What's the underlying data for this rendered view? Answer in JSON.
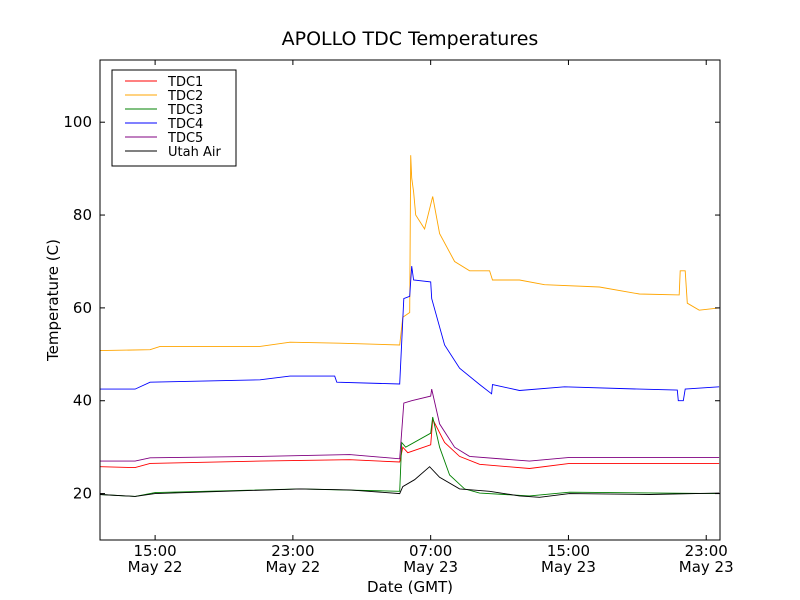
{
  "chart_data": {
    "type": "line",
    "title": "APOLLO TDC Temperatures",
    "xlabel": "Date (GMT)",
    "ylabel": "Temperature (C)",
    "x_units": "hours since May 22 00:00 GMT",
    "xlim": [
      11.8,
      47.8
    ],
    "ylim": [
      10,
      113.4
    ],
    "grid": false,
    "legend_position": "top-left",
    "yticks": [
      20,
      40,
      60,
      80,
      100
    ],
    "xticks": [
      {
        "x": 15,
        "time": "15:00",
        "date": "May 22"
      },
      {
        "x": 23,
        "time": "23:00",
        "date": "May 22"
      },
      {
        "x": 31,
        "time": "07:00",
        "date": "May 23"
      },
      {
        "x": 39,
        "time": "15:00",
        "date": "May 23"
      },
      {
        "x": 47,
        "time": "23:00",
        "date": "May 23"
      }
    ],
    "series": [
      {
        "name": "TDC1",
        "color": "#ff0000",
        "points": [
          [
            11.81,
            25.8
          ],
          [
            13.84,
            25.6
          ],
          [
            14.71,
            26.5
          ],
          [
            21.09,
            27
          ],
          [
            26.3,
            27.3
          ],
          [
            29.2,
            26.8
          ],
          [
            29.38,
            30
          ],
          [
            29.67,
            28.8
          ],
          [
            31.0,
            30.5
          ],
          [
            31.12,
            36
          ],
          [
            31.81,
            31
          ],
          [
            32.68,
            28
          ],
          [
            33.84,
            26.3
          ],
          [
            36.74,
            25.4
          ],
          [
            39.06,
            26.5
          ],
          [
            47.75,
            26.5
          ]
        ]
      },
      {
        "name": "TDC2",
        "color": "#ffa500",
        "points": [
          [
            11.81,
            50.8
          ],
          [
            14.71,
            51
          ],
          [
            15.29,
            51.7
          ],
          [
            21.09,
            51.7
          ],
          [
            22.83,
            52.6
          ],
          [
            25.72,
            52.4
          ],
          [
            29.2,
            52
          ],
          [
            29.38,
            58
          ],
          [
            29.78,
            59
          ],
          [
            29.84,
            92.9
          ],
          [
            29.9,
            88
          ],
          [
            30.01,
            85
          ],
          [
            30.13,
            80
          ],
          [
            30.65,
            77
          ],
          [
            31.12,
            84
          ],
          [
            31.52,
            76
          ],
          [
            32.39,
            70
          ],
          [
            33.26,
            68
          ],
          [
            34.42,
            68
          ],
          [
            34.59,
            66
          ],
          [
            36.16,
            66
          ],
          [
            37.61,
            65
          ],
          [
            40.8,
            64.5
          ],
          [
            43.12,
            63
          ],
          [
            45.43,
            62.8
          ],
          [
            45.49,
            68
          ],
          [
            45.78,
            68
          ],
          [
            45.9,
            61
          ],
          [
            46.59,
            59.5
          ],
          [
            47.75,
            60
          ]
        ]
      },
      {
        "name": "TDC3",
        "color": "#008000",
        "points": [
          [
            11.81,
            19.8
          ],
          [
            13.84,
            19.4
          ],
          [
            15,
            20.2
          ],
          [
            23.41,
            21
          ],
          [
            29.2,
            20.5
          ],
          [
            29.32,
            31
          ],
          [
            29.55,
            30
          ],
          [
            31.0,
            33
          ],
          [
            31.12,
            36.5
          ],
          [
            31.52,
            30
          ],
          [
            32.1,
            24
          ],
          [
            32.97,
            21
          ],
          [
            33.84,
            20.1
          ],
          [
            36.74,
            19.5
          ],
          [
            39.06,
            20.3
          ],
          [
            47.75,
            20
          ]
        ]
      },
      {
        "name": "TDC4",
        "color": "#0000ff",
        "points": [
          [
            11.81,
            42.5
          ],
          [
            13.84,
            42.5
          ],
          [
            14.71,
            44
          ],
          [
            21.09,
            44.5
          ],
          [
            22.83,
            45.3
          ],
          [
            25.43,
            45.3
          ],
          [
            25.55,
            44
          ],
          [
            29.2,
            43.6
          ],
          [
            29.44,
            62
          ],
          [
            29.78,
            62.5
          ],
          [
            29.9,
            69
          ],
          [
            30.01,
            66
          ],
          [
            31.0,
            65.6
          ],
          [
            31.06,
            62
          ],
          [
            31.81,
            52
          ],
          [
            32.68,
            47
          ],
          [
            33.84,
            43.5
          ],
          [
            34.54,
            41.5
          ],
          [
            34.59,
            43.5
          ],
          [
            36.16,
            42.2
          ],
          [
            38.77,
            43
          ],
          [
            43.12,
            42.5
          ],
          [
            45.32,
            42.3
          ],
          [
            45.38,
            40
          ],
          [
            45.67,
            40
          ],
          [
            45.78,
            42.5
          ],
          [
            47.75,
            43
          ]
        ]
      },
      {
        "name": "TDC5",
        "color": "#800080",
        "points": [
          [
            11.81,
            27
          ],
          [
            13.84,
            27
          ],
          [
            14.71,
            27.7
          ],
          [
            21.09,
            28
          ],
          [
            26.3,
            28.4
          ],
          [
            29.2,
            27.5
          ],
          [
            29.44,
            39.5
          ],
          [
            29.9,
            40
          ],
          [
            31.0,
            41
          ],
          [
            31.06,
            42.5
          ],
          [
            31.52,
            35
          ],
          [
            32.39,
            30
          ],
          [
            33.26,
            28
          ],
          [
            36.74,
            27
          ],
          [
            39.06,
            27.8
          ],
          [
            47.75,
            27.8
          ]
        ]
      },
      {
        "name": "Utah Air",
        "color": "#000000",
        "points": [
          [
            11.81,
            19.8
          ],
          [
            13.84,
            19.4
          ],
          [
            15,
            20
          ],
          [
            23.41,
            21
          ],
          [
            26.3,
            20.8
          ],
          [
            29.2,
            20
          ],
          [
            29.38,
            21.5
          ],
          [
            30.07,
            23
          ],
          [
            30.94,
            25.8
          ],
          [
            31.52,
            23.5
          ],
          [
            32.68,
            21
          ],
          [
            34.42,
            20.5
          ],
          [
            36.16,
            19.5
          ],
          [
            37.32,
            19.2
          ],
          [
            39.06,
            20
          ],
          [
            43.7,
            19.8
          ],
          [
            47.75,
            20.1
          ]
        ]
      }
    ]
  }
}
